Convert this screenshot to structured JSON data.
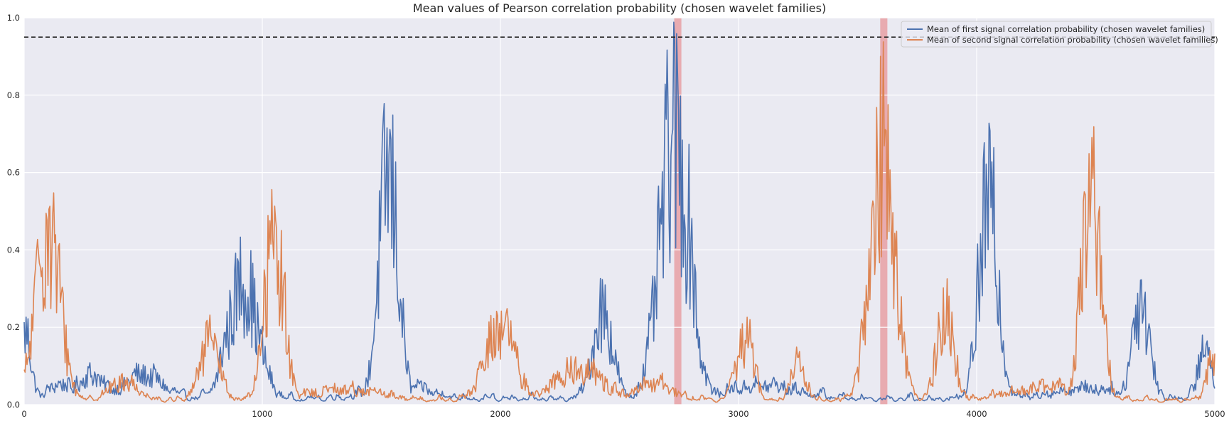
{
  "chart_data": {
    "type": "line",
    "title": "Mean values of Pearson correlation probability (chosen wavelet families)",
    "xlabel": "",
    "ylabel": "",
    "xlim": [
      0,
      5000
    ],
    "ylim": [
      0,
      1.0
    ],
    "x_ticks": [
      0,
      1000,
      2000,
      3000,
      4000,
      5000
    ],
    "x_tick_labels": [
      "0",
      "1000",
      "2000",
      "3000",
      "4000",
      "5000"
    ],
    "y_ticks": [
      0.0,
      0.2,
      0.4,
      0.6,
      0.8,
      1.0
    ],
    "y_tick_labels": [
      "0.0",
      "0.2",
      "0.4",
      "0.6",
      "0.8",
      "1.0"
    ],
    "grid": true,
    "legend_position": "top-right",
    "threshold": 0.95,
    "highlight_regions": [
      {
        "x0": 2730,
        "x1": 2760,
        "color": "#e8a0a4"
      },
      {
        "x0": 3595,
        "x1": 3625,
        "color": "#e8a0a4"
      }
    ],
    "series": [
      {
        "name": "Mean of first signal correlation probability (chosen wavelet families)",
        "color": "#4c72b0",
        "base_level": 0.02,
        "peaks": [
          {
            "x": 5,
            "w": 25,
            "h": 0.25
          },
          {
            "x": 150,
            "w": 40,
            "h": 0.06
          },
          {
            "x": 280,
            "w": 60,
            "h": 0.09
          },
          {
            "x": 500,
            "w": 80,
            "h": 0.09
          },
          {
            "x": 870,
            "w": 40,
            "h": 0.28
          },
          {
            "x": 920,
            "w": 60,
            "h": 0.45
          },
          {
            "x": 1530,
            "w": 40,
            "h": 0.86
          },
          {
            "x": 1580,
            "w": 120,
            "h": 0.05
          },
          {
            "x": 2430,
            "w": 40,
            "h": 0.34
          },
          {
            "x": 2730,
            "w": 60,
            "h": 1.0
          },
          {
            "x": 2790,
            "w": 30,
            "h": 0.65
          },
          {
            "x": 3100,
            "w": 150,
            "h": 0.05
          },
          {
            "x": 4050,
            "w": 40,
            "h": 0.75
          },
          {
            "x": 4470,
            "w": 150,
            "h": 0.04
          },
          {
            "x": 4690,
            "w": 35,
            "h": 0.39
          },
          {
            "x": 4960,
            "w": 30,
            "h": 0.18
          }
        ]
      },
      {
        "name": "Mean of second signal correlation probability (chosen wavelet families)",
        "color": "#dd8452",
        "base_level": 0.015,
        "peaks": [
          {
            "x": 100,
            "w": 50,
            "h": 0.66
          },
          {
            "x": 420,
            "w": 60,
            "h": 0.07
          },
          {
            "x": 780,
            "w": 40,
            "h": 0.22
          },
          {
            "x": 1050,
            "w": 40,
            "h": 0.62
          },
          {
            "x": 1350,
            "w": 150,
            "h": 0.04
          },
          {
            "x": 2000,
            "w": 60,
            "h": 0.28
          },
          {
            "x": 2330,
            "w": 100,
            "h": 0.12
          },
          {
            "x": 2650,
            "w": 80,
            "h": 0.06
          },
          {
            "x": 3030,
            "w": 35,
            "h": 0.25
          },
          {
            "x": 3250,
            "w": 30,
            "h": 0.14
          },
          {
            "x": 3605,
            "w": 50,
            "h": 1.0
          },
          {
            "x": 3870,
            "w": 35,
            "h": 0.34
          },
          {
            "x": 4480,
            "w": 40,
            "h": 0.8
          },
          {
            "x": 4300,
            "w": 150,
            "h": 0.05
          },
          {
            "x": 4985,
            "w": 25,
            "h": 0.14
          }
        ]
      }
    ]
  }
}
